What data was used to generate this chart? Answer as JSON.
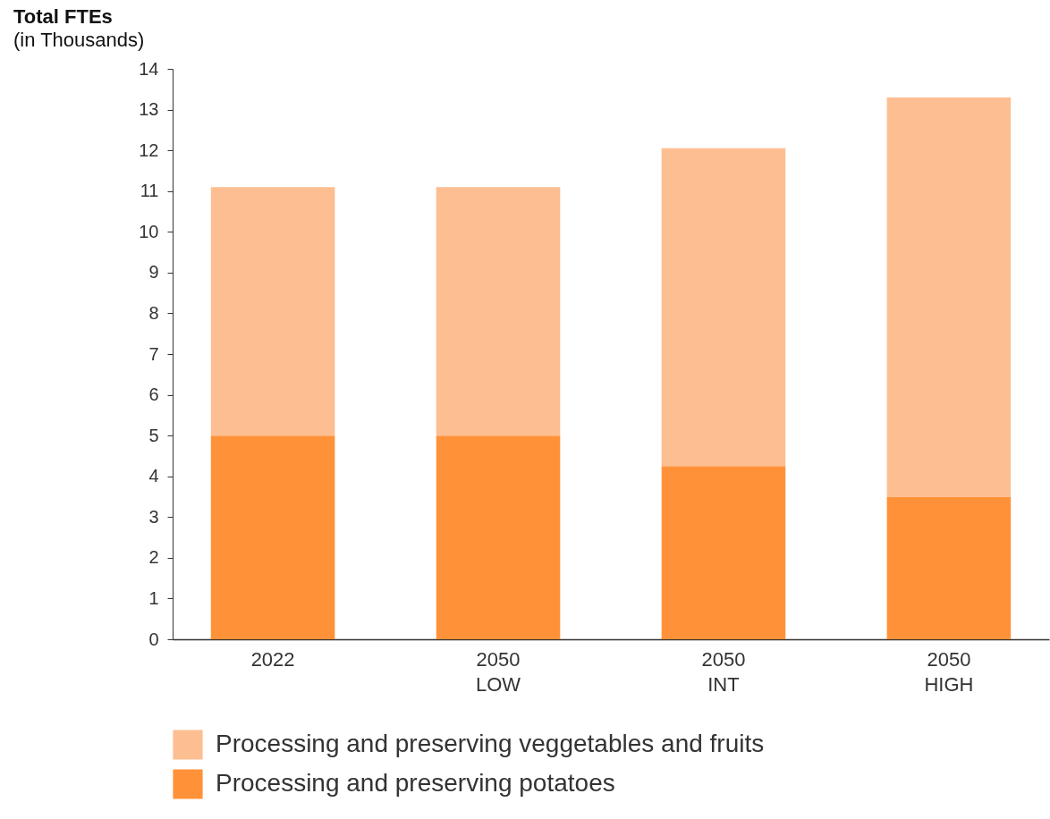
{
  "chart_data": {
    "type": "bar",
    "title": "Total FTEs",
    "subtitle": "(in Thousands)",
    "stacked": true,
    "legend": "bottom",
    "categories": [
      "2022",
      "2050\nLOW",
      "2050\nINT",
      "2050\nHIGH"
    ],
    "series": [
      {
        "name": "Processing and preserving potatoes",
        "color": "#ff9239",
        "values": [
          5.0,
          5.0,
          4.25,
          3.5
        ]
      },
      {
        "name": "Processing and preserving veggetables and fruits",
        "color": "#fdbe91",
        "values": [
          6.1,
          6.1,
          7.8,
          9.8
        ]
      }
    ],
    "ylim": [
      0,
      14
    ],
    "yticks": [
      0,
      1,
      2,
      3,
      4,
      5,
      6,
      7,
      8,
      9,
      10,
      11,
      12,
      13,
      14
    ]
  }
}
